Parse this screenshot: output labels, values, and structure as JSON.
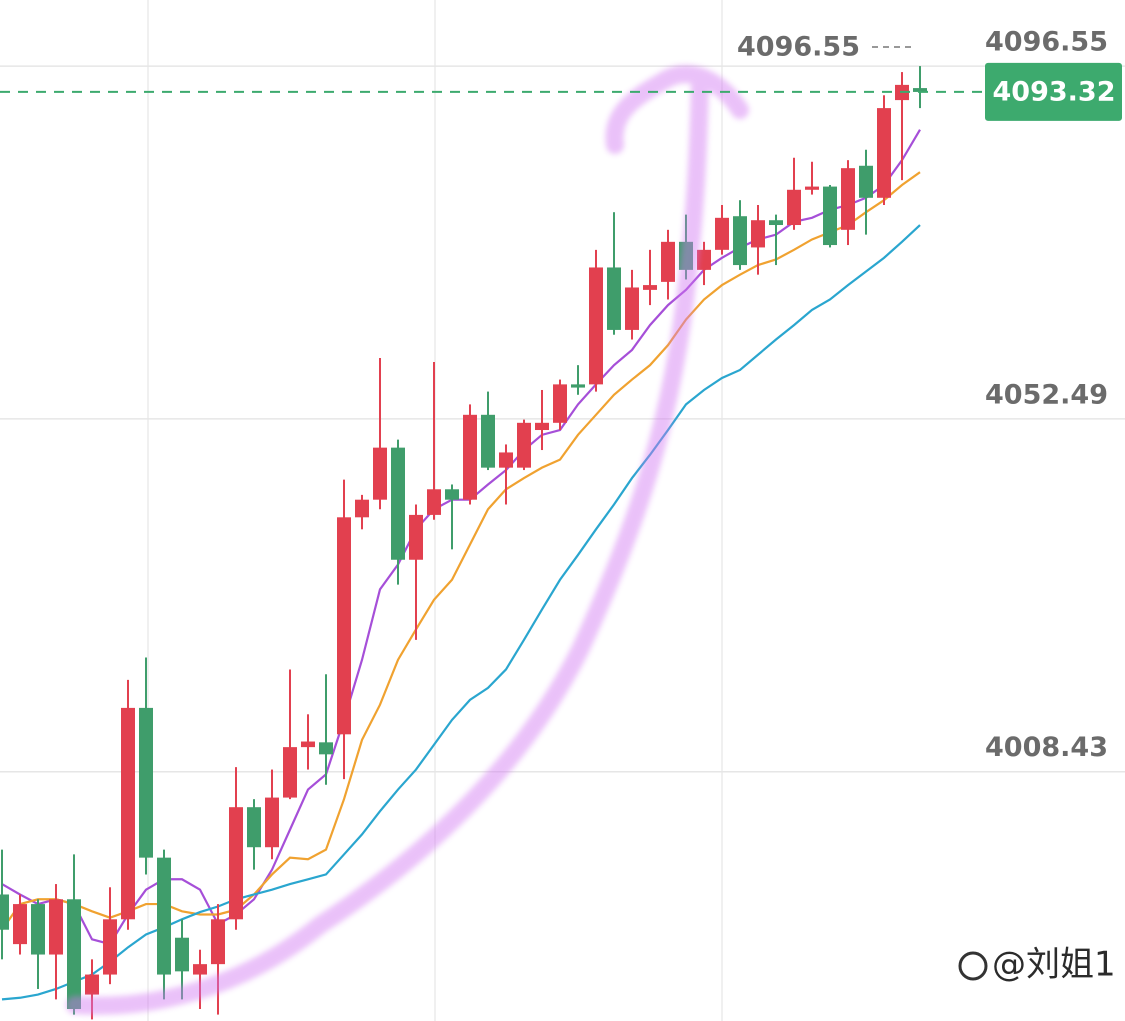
{
  "chart_data": {
    "type": "candlestick",
    "categories": [
      null,
      null,
      null,
      null,
      null,
      null,
      null,
      null,
      null,
      null,
      null,
      null,
      null,
      null,
      null,
      null,
      null,
      null,
      null,
      null,
      null,
      null,
      null,
      null,
      null,
      null,
      null,
      null,
      null,
      null,
      null,
      null,
      null,
      null,
      null,
      null,
      null,
      null,
      null,
      null,
      null,
      null,
      null,
      null,
      null,
      null,
      null,
      null,
      null,
      null,
      null,
      null
    ],
    "open": [
      3993.1,
      3986.9,
      3991.9,
      3985.6,
      3992.5,
      3980.6,
      3983.1,
      3990.0,
      4016.4,
      3997.7,
      3987.7,
      3983.1,
      3984.4,
      3990.0,
      4004.0,
      3999.0,
      4005.2,
      4011.5,
      4012.1,
      4013.1,
      4040.2,
      4042.4,
      4048.9,
      4034.9,
      4040.5,
      4043.7,
      4042.4,
      4053.0,
      4046.4,
      4046.4,
      4051.1,
      4052.0,
      4056.8,
      4056.8,
      4071.4,
      4063.6,
      4068.6,
      4069.6,
      4074.6,
      4071.1,
      4073.6,
      4077.8,
      4073.9,
      4077.3,
      4076.7,
      4081.1,
      4081.5,
      4076.1,
      4084.1,
      4080.1,
      4092.3,
      4093.8
    ],
    "high": [
      3998.7,
      3993.1,
      3992.5,
      3994.4,
      3998.1,
      3985.0,
      3994.0,
      4019.9,
      4022.7,
      3998.7,
      3990.0,
      3986.2,
      3991.9,
      4009.0,
      4005.0,
      4008.7,
      4021.2,
      4015.6,
      4020.6,
      4044.9,
      4043.0,
      4060.1,
      4049.9,
      4041.8,
      4059.6,
      4044.3,
      4054.3,
      4055.9,
      4049.3,
      4052.4,
      4056.1,
      4057.4,
      4059.2,
      4073.6,
      4078.3,
      4071.1,
      4073.6,
      4076.1,
      4078.0,
      4074.6,
      4079.2,
      4079.8,
      4079.2,
      4078.0,
      4085.1,
      4084.6,
      4081.7,
      4084.8,
      4086.1,
      4092.9,
      4095.8,
      4096.55
    ],
    "low": [
      3985.0,
      3985.6,
      3981.3,
      3980.0,
      3978.1,
      3977.5,
      3981.9,
      3988.7,
      3995.6,
      3980.0,
      3980.0,
      3978.8,
      3978.1,
      3988.7,
      3996.2,
      3997.5,
      4005.0,
      4008.7,
      4006.8,
      4007.5,
      4038.7,
      4041.2,
      4031.8,
      4024.9,
      4039.9,
      4036.2,
      4041.8,
      4046.1,
      4041.8,
      4046.1,
      4048.6,
      4051.1,
      4055.5,
      4055.9,
      4063.0,
      4062.4,
      4066.7,
      4067.4,
      4069.9,
      4069.2,
      4073.0,
      4071.1,
      4070.5,
      4071.7,
      4076.1,
      4080.5,
      4073.9,
      4074.2,
      4075.5,
      4079.2,
      4082.3,
      4091.3
    ],
    "close": [
      3988.7,
      3991.9,
      3985.6,
      3992.5,
      3978.8,
      3983.1,
      3990.0,
      4016.4,
      3997.7,
      3983.1,
      3983.5,
      3984.4,
      3990.0,
      4004.0,
      3999.0,
      4005.2,
      4011.5,
      4012.2,
      4010.6,
      4040.2,
      4042.4,
      4048.9,
      4034.9,
      4040.5,
      4043.7,
      4042.4,
      4053.0,
      4046.4,
      4048.3,
      4052.0,
      4052.0,
      4056.8,
      4056.4,
      4071.4,
      4063.6,
      4068.9,
      4069.2,
      4074.6,
      4071.1,
      4073.6,
      4077.6,
      4071.7,
      4077.3,
      4076.7,
      4081.1,
      4081.5,
      4074.2,
      4083.8,
      4080.1,
      4091.3,
      4094.2,
      4093.32
    ],
    "up_color": "#e2404f",
    "down_color": "#3f9d6b",
    "lines": [
      {
        "color": "#a64fd8",
        "values": [
          3994.4,
          3993.1,
          3991.9,
          3992.5,
          3991.9,
          3987.5,
          3986.9,
          3990.6,
          3993.7,
          3995.0,
          3995.0,
          3993.7,
          3989.4,
          3990.6,
          3992.5,
          3996.2,
          4001.2,
          4006.2,
          4008.1,
          4014.9,
          4022.4,
          4031.2,
          4034.3,
          4038.7,
          4041.2,
          4042.4,
          4042.4,
          4044.3,
          4046.1,
          4048.6,
          4050.5,
          4051.1,
          4054.3,
          4056.8,
          4059.2,
          4061.1,
          4064.2,
          4066.7,
          4068.6,
          4071.1,
          4072.6,
          4073.9,
          4074.9,
          4075.5,
          4077.1,
          4077.6,
          4078.6,
          4079.2,
          4080.1,
          4081.7,
          4084.8,
          4088.6
        ]
      },
      {
        "color": "#f0a230",
        "values": [
          3988.7,
          3991.9,
          3992.5,
          3992.5,
          3991.9,
          3991.0,
          3990.2,
          3991.0,
          3991.9,
          3991.9,
          3991.0,
          3990.6,
          3990.6,
          3991.2,
          3993.1,
          3995.6,
          3997.7,
          3997.5,
          3998.7,
          4005.0,
          4012.4,
          4016.8,
          4022.4,
          4026.2,
          4029.9,
          4032.4,
          4036.8,
          4041.2,
          4043.7,
          4045.1,
          4046.4,
          4047.4,
          4050.5,
          4053.0,
          4055.5,
          4057.4,
          4059.2,
          4061.7,
          4064.9,
          4067.4,
          4069.2,
          4070.5,
          4071.7,
          4072.4,
          4073.6,
          4074.9,
          4075.8,
          4076.7,
          4078.3,
          4079.8,
          4081.7,
          4083.3
        ]
      },
      {
        "color": "#2aa6cf",
        "values": [
          3980.0,
          3980.2,
          3980.6,
          3981.3,
          3982.2,
          3983.1,
          3984.7,
          3986.5,
          3988.1,
          3989.0,
          3990.0,
          3990.9,
          3991.6,
          3992.5,
          3993.1,
          3993.7,
          3994.4,
          3995.0,
          3995.6,
          3998.1,
          4000.6,
          4003.5,
          4006.2,
          4008.7,
          4011.8,
          4014.9,
          4017.4,
          4018.9,
          4021.2,
          4024.9,
          4028.7,
          4032.4,
          4035.5,
          4038.7,
          4041.8,
          4045.1,
          4048.0,
          4051.1,
          4054.3,
          4056.1,
          4057.6,
          4058.6,
          4060.5,
          4062.4,
          4064.2,
          4066.1,
          4067.4,
          4069.2,
          4070.9,
          4072.6,
          4074.6,
          4076.7
        ]
      }
    ],
    "ylim": [
      3977.3,
      4104.8
    ],
    "yticks": [
      4008.43,
      4052.49,
      4096.55
    ],
    "grid": true,
    "price_line_color": "#3daa6e",
    "watermark": "@刘姐1"
  }
}
